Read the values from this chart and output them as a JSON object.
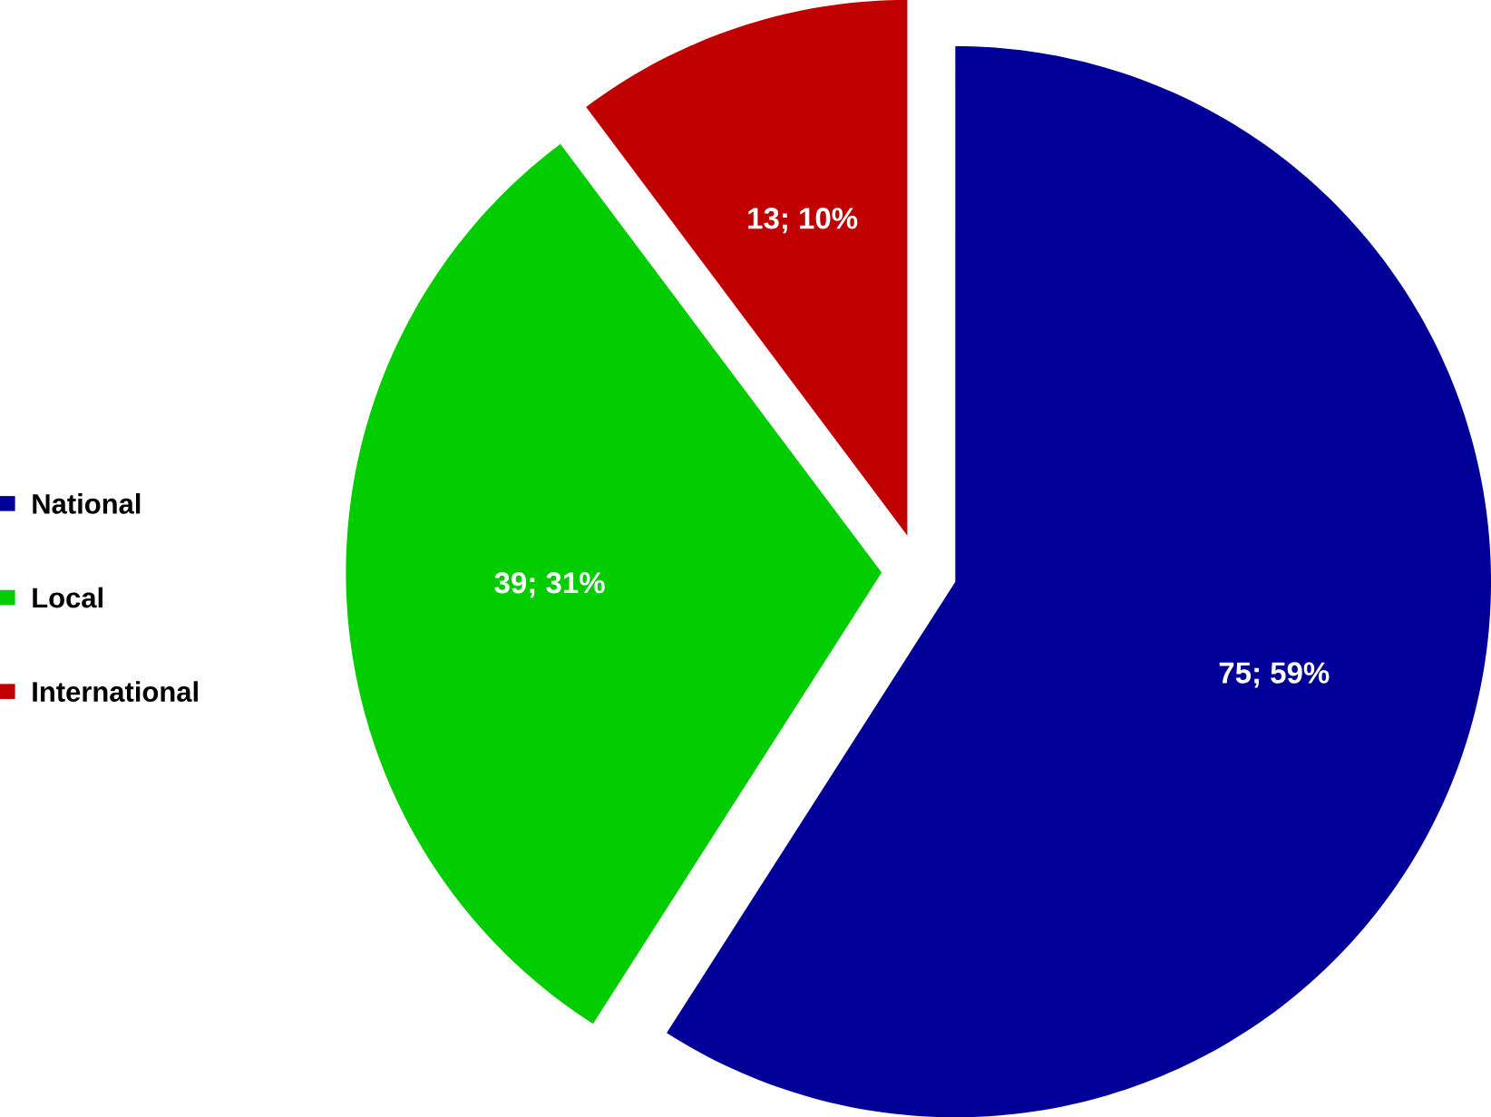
{
  "chart_data": {
    "type": "pie",
    "categories": [
      "National",
      "Local",
      "International"
    ],
    "values": [
      75,
      39,
      13
    ],
    "colors": [
      "#000099",
      "#00cc00",
      "#c00000"
    ],
    "value_labels": [
      "75; 59%",
      "39; 31%",
      "13; 10%"
    ],
    "legend": "left"
  }
}
